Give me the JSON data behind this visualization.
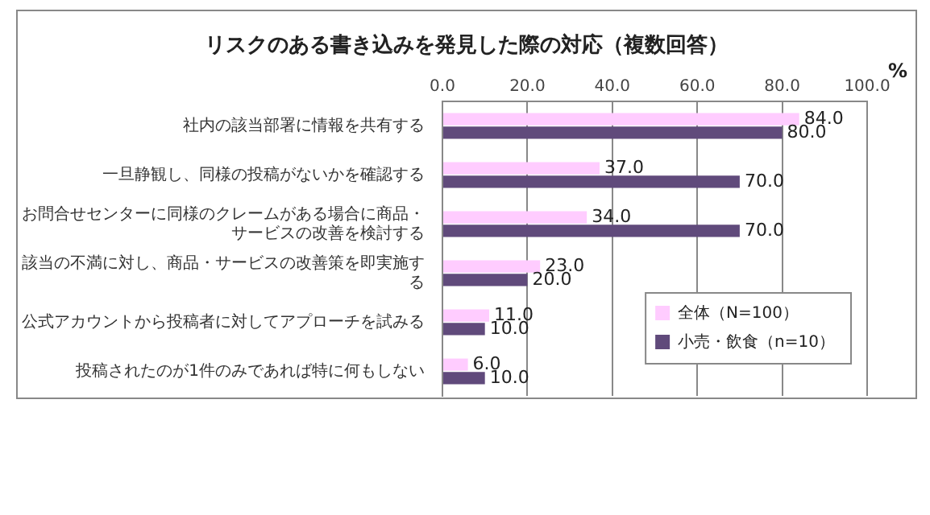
{
  "chart_data": {
    "type": "bar",
    "orientation": "horizontal",
    "title": "リスクのある書き込みを発見した際の対応（複数回答）",
    "xlabel": "%",
    "categories": [
      "社内の該当部署に情報を共有する",
      "一旦静観し、同様の投稿がないかを確認する",
      "お問合せセンターに同様のクレームがある場合に商品・サービスの改善を検討する",
      "該当の不満に対し、商品・サービスの改善策を即実施する",
      "公式アカウントから投稿者に対してアプローチを試みる",
      "投稿されたのが1件のみであれば特に何もしない"
    ],
    "series": [
      {
        "name": "全体（N=100）",
        "color": "#ffccff",
        "values": [
          84.0,
          37.0,
          34.0,
          23.0,
          11.0,
          6.0
        ],
        "value_labels": [
          "84.0",
          "37.0",
          "34.0",
          "23.0",
          "11.0",
          "6.0"
        ]
      },
      {
        "name": "小売・飲食（n=10）",
        "color": "#604a7b",
        "values": [
          80.0,
          70.0,
          70.0,
          20.0,
          10.0,
          10.0
        ],
        "value_labels": [
          "80.0",
          "70.0",
          "70.0",
          "20.0",
          "10.0",
          "10.0"
        ]
      }
    ],
    "xlim": [
      0,
      100
    ],
    "xticks": [
      {
        "value": 0,
        "label": "0.0"
      },
      {
        "value": 20,
        "label": "20.0"
      },
      {
        "value": 40,
        "label": "40.0"
      },
      {
        "value": 60,
        "label": "60.0"
      },
      {
        "value": 80,
        "label": "80.0"
      },
      {
        "value": 100,
        "label": "100.0"
      }
    ],
    "grid": "x",
    "legend": "bottom right"
  }
}
